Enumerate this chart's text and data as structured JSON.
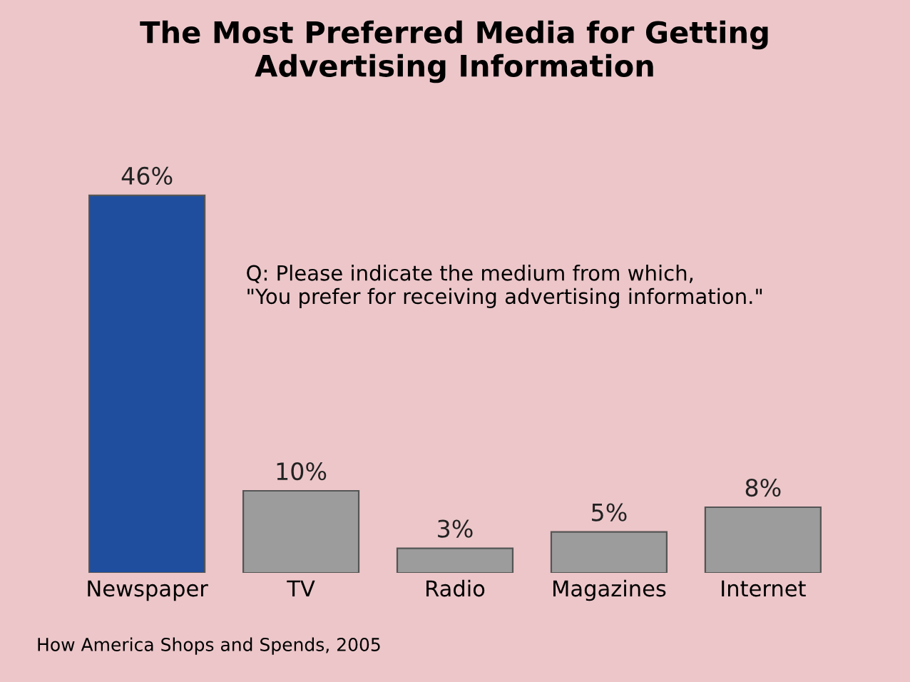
{
  "chart_data": {
    "type": "bar",
    "title": "The Most Preferred Media for Getting\nAdvertising Information",
    "categories": [
      "Newspaper",
      "TV",
      "Radio",
      "Magazines",
      "Internet"
    ],
    "values": [
      46,
      10,
      3,
      5,
      8
    ],
    "colors": [
      "#1f4e9e",
      "#9c9c9c",
      "#9c9c9c",
      "#9c9c9c",
      "#9c9c9c"
    ],
    "value_labels": [
      "46%",
      "10%",
      "3%",
      "5%",
      "8%"
    ],
    "annotations": [
      "Q: Please indicate the medium from which,\n\"You prefer for receiving advertising information.\"",
      "How America Shops and Spends, 2005"
    ],
    "grid": false,
    "legend": false
  }
}
